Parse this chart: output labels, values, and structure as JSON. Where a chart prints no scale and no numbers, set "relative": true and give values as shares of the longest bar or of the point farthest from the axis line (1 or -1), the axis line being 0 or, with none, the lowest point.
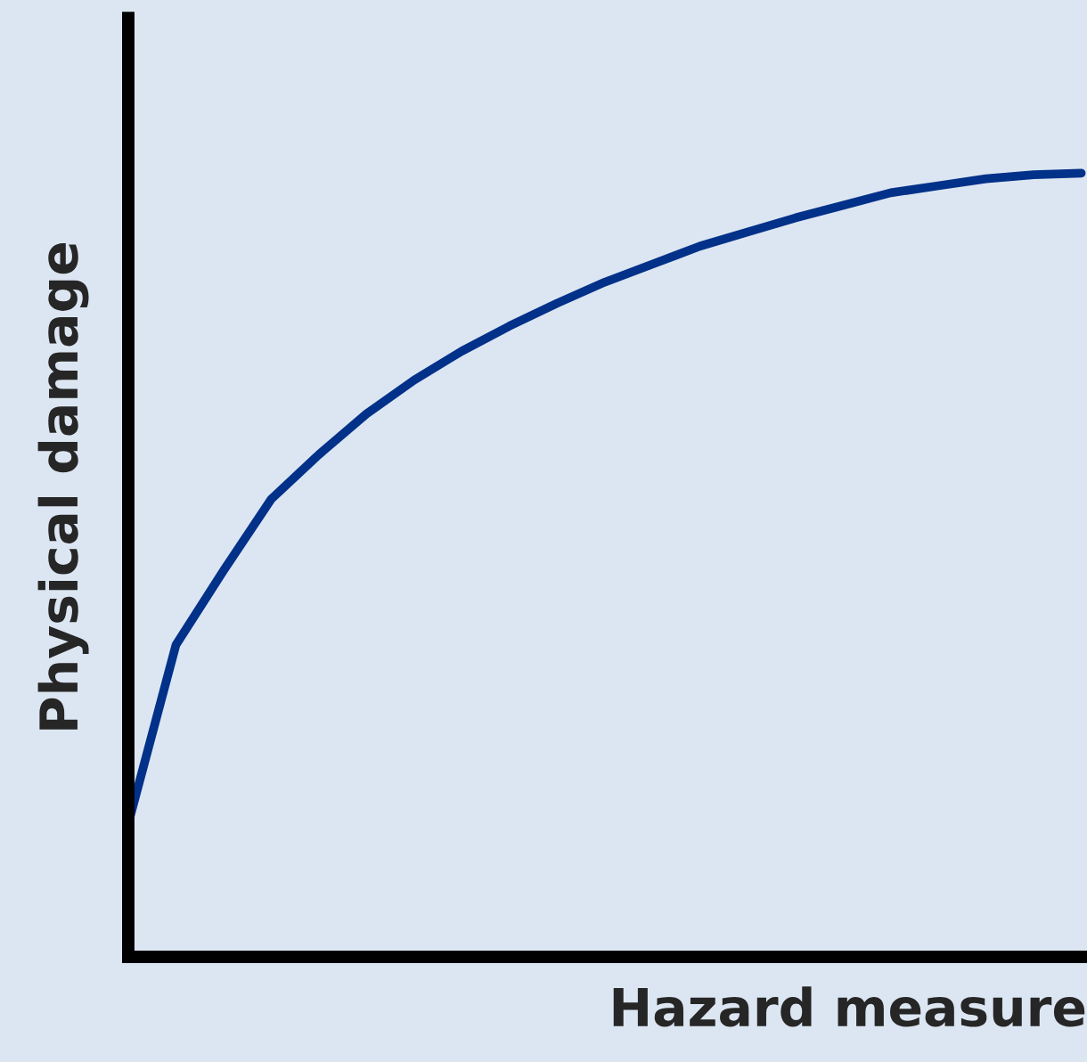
{
  "chart_data": {
    "type": "line",
    "relative": true,
    "xlabel": "Hazard measure",
    "ylabel": "Physical damage",
    "categories": [
      null,
      null,
      null,
      null,
      null,
      null,
      null,
      null,
      null,
      null,
      null,
      null,
      null,
      null,
      null,
      null,
      null,
      null,
      null,
      null,
      null
    ],
    "series": [
      {
        "color": "#023189",
        "values": [
          0.17,
          0.398,
          0.493,
          0.584,
          0.641,
          0.693,
          0.736,
          0.773,
          0.805,
          0.834,
          0.861,
          0.884,
          0.907,
          0.925,
          0.943,
          0.959,
          0.975,
          0.984,
          0.993,
          0.998,
          1.0
        ]
      }
    ],
    "marker": "none",
    "line_style": "solid",
    "tick_labels": false
  }
}
